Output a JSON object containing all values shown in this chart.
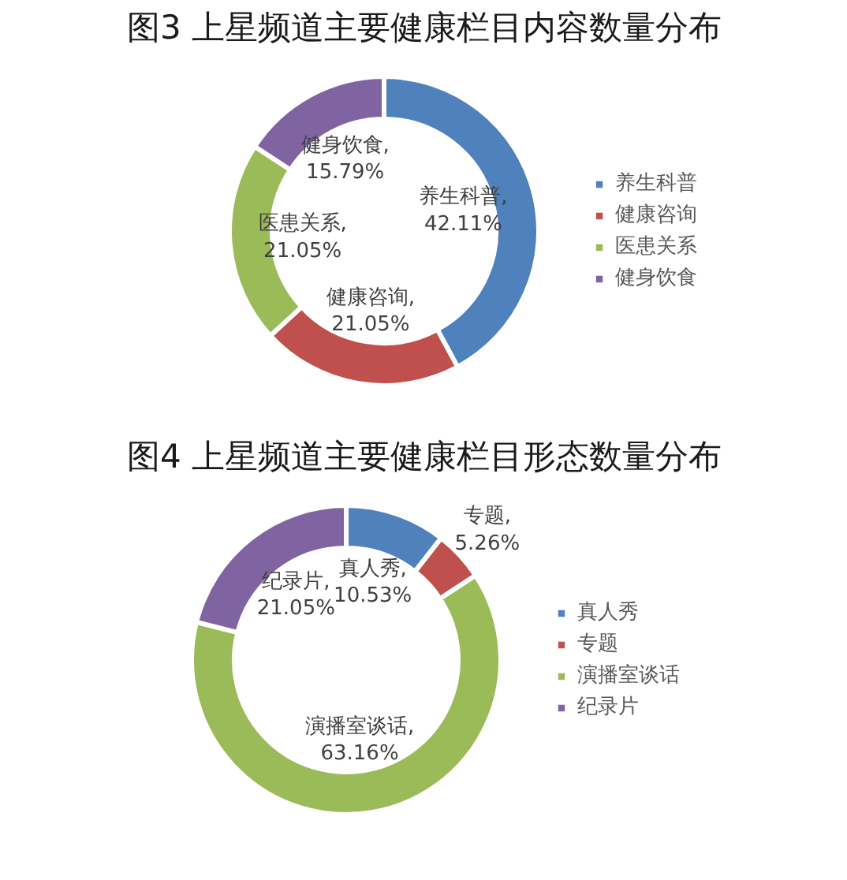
{
  "chart_data": [
    {
      "type": "donut",
      "title": "图3 上星频道主要健康栏目内容数量分布",
      "categories": [
        "养生科普",
        "健康咨询",
        "医患关系",
        "健身饮食"
      ],
      "values": [
        42.11,
        21.05,
        21.05,
        15.79
      ],
      "colors": [
        "#4f81bd",
        "#c0504d",
        "#9bbb59",
        "#8064a2"
      ],
      "value_labels": [
        "养生科普,\n42.11%",
        "健康咨询,\n21.05%",
        "医患关系,\n21.05%",
        "健身饮食,\n15.79%"
      ],
      "legend": "right"
    },
    {
      "type": "donut",
      "title": "图4 上星频道主要健康栏目形态数量分布",
      "categories": [
        "真人秀",
        "专题",
        "演播室谈话",
        "纪录片"
      ],
      "values": [
        10.53,
        5.26,
        63.16,
        21.05
      ],
      "colors": [
        "#4f81bd",
        "#c0504d",
        "#9bbb59",
        "#8064a2"
      ],
      "value_labels": [
        "真人秀,\n10.53%",
        "专题,\n5.26%",
        "演播室谈话,\n63.16%",
        "纪录片,\n21.05%"
      ],
      "legend": "right"
    }
  ]
}
